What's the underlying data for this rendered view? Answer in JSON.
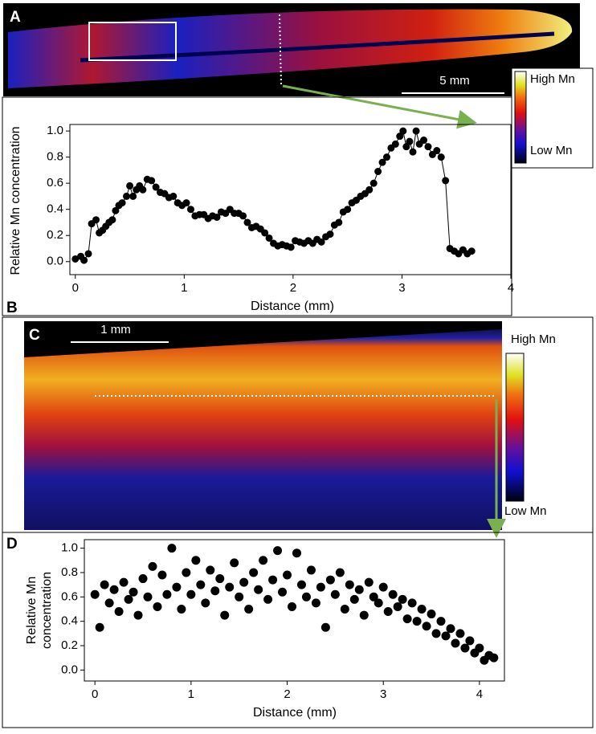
{
  "panels": [
    {
      "label": "A",
      "scale_bar": "5 mm",
      "colorbar": {
        "high": "High Mn",
        "low": "Low Mn"
      }
    },
    {
      "label": "C",
      "scale_bar": "1 mm",
      "colorbar": {
        "high": "High Mn",
        "low": "Low Mn"
      }
    }
  ],
  "chart_data": [
    {
      "type": "line",
      "label": "B",
      "ylabel": "Relative Mn concentration",
      "xlabel": "Distance (mm)",
      "color": "#000000",
      "markers": true,
      "x": [
        0.0,
        0.05,
        0.08,
        0.12,
        0.15,
        0.19,
        0.22,
        0.25,
        0.28,
        0.31,
        0.34,
        0.37,
        0.4,
        0.43,
        0.47,
        0.5,
        0.53,
        0.56,
        0.59,
        0.62,
        0.66,
        0.7,
        0.74,
        0.78,
        0.82,
        0.86,
        0.9,
        0.94,
        0.98,
        1.02,
        1.06,
        1.1,
        1.14,
        1.18,
        1.22,
        1.26,
        1.3,
        1.34,
        1.38,
        1.42,
        1.46,
        1.5,
        1.54,
        1.58,
        1.62,
        1.66,
        1.7,
        1.74,
        1.78,
        1.82,
        1.86,
        1.9,
        1.94,
        1.98,
        2.02,
        2.06,
        2.1,
        2.14,
        2.18,
        2.22,
        2.26,
        2.3,
        2.34,
        2.38,
        2.42,
        2.46,
        2.5,
        2.54,
        2.58,
        2.62,
        2.66,
        2.7,
        2.74,
        2.78,
        2.82,
        2.86,
        2.9,
        2.94,
        2.98,
        3.01,
        3.04,
        3.07,
        3.1,
        3.13,
        3.16,
        3.2,
        3.24,
        3.28,
        3.32,
        3.36,
        3.4,
        3.44,
        3.48,
        3.52,
        3.56,
        3.6,
        3.64
      ],
      "values": [
        0.02,
        0.04,
        0.01,
        0.06,
        0.29,
        0.32,
        0.22,
        0.24,
        0.27,
        0.3,
        0.32,
        0.39,
        0.43,
        0.45,
        0.5,
        0.58,
        0.5,
        0.55,
        0.58,
        0.55,
        0.63,
        0.62,
        0.57,
        0.53,
        0.52,
        0.49,
        0.5,
        0.45,
        0.43,
        0.45,
        0.4,
        0.35,
        0.36,
        0.36,
        0.33,
        0.35,
        0.34,
        0.38,
        0.37,
        0.4,
        0.37,
        0.37,
        0.35,
        0.3,
        0.26,
        0.27,
        0.25,
        0.22,
        0.18,
        0.14,
        0.12,
        0.13,
        0.12,
        0.11,
        0.16,
        0.15,
        0.14,
        0.16,
        0.14,
        0.17,
        0.15,
        0.19,
        0.21,
        0.28,
        0.3,
        0.38,
        0.4,
        0.45,
        0.47,
        0.5,
        0.52,
        0.55,
        0.6,
        0.69,
        0.76,
        0.8,
        0.87,
        0.9,
        0.96,
        1.0,
        0.88,
        0.92,
        0.84,
        1.0,
        0.9,
        0.93,
        0.88,
        0.82,
        0.85,
        0.8,
        0.62,
        0.1,
        0.08,
        0.06,
        0.09,
        0.06,
        0.08
      ],
      "xlim": [
        -0.05,
        4
      ],
      "ylim": [
        -0.1,
        1.05
      ],
      "xticks": [
        0,
        1,
        2,
        3,
        4
      ],
      "yticks": [
        {
          "value": 0,
          "label": "0.0"
        },
        0.2,
        0.4,
        0.6,
        0.8,
        {
          "value": 1,
          "label": "1.0"
        }
      ]
    },
    {
      "type": "scatter",
      "label": "D",
      "ylabel": [
        "Relative Mn",
        "concentration"
      ],
      "xlabel": "Distance (mm)",
      "color": "#000000",
      "x": [
        0.0,
        0.05,
        0.1,
        0.15,
        0.2,
        0.25,
        0.3,
        0.35,
        0.4,
        0.45,
        0.5,
        0.55,
        0.6,
        0.65,
        0.7,
        0.75,
        0.8,
        0.85,
        0.9,
        0.95,
        1.0,
        1.05,
        1.1,
        1.15,
        1.2,
        1.25,
        1.3,
        1.35,
        1.4,
        1.45,
        1.5,
        1.55,
        1.6,
        1.65,
        1.7,
        1.75,
        1.8,
        1.85,
        1.9,
        1.95,
        2.0,
        2.05,
        2.1,
        2.15,
        2.2,
        2.25,
        2.3,
        2.35,
        2.4,
        2.45,
        2.5,
        2.55,
        2.6,
        2.65,
        2.7,
        2.75,
        2.8,
        2.85,
        2.9,
        2.95,
        3.0,
        3.05,
        3.1,
        3.15,
        3.2,
        3.25,
        3.3,
        3.35,
        3.4,
        3.45,
        3.5,
        3.55,
        3.6,
        3.65,
        3.7,
        3.75,
        3.8,
        3.85,
        3.9,
        3.95,
        4.0,
        4.05,
        4.1,
        4.15
      ],
      "values": [
        0.62,
        0.35,
        0.7,
        0.55,
        0.66,
        0.48,
        0.72,
        0.58,
        0.64,
        0.45,
        0.75,
        0.6,
        0.85,
        0.52,
        0.78,
        0.62,
        1.0,
        0.68,
        0.5,
        0.8,
        0.62,
        0.9,
        0.7,
        0.55,
        0.82,
        0.65,
        0.75,
        0.45,
        0.68,
        0.88,
        0.6,
        0.72,
        0.5,
        0.8,
        0.66,
        0.9,
        0.58,
        0.74,
        0.98,
        0.64,
        0.78,
        0.52,
        0.96,
        0.7,
        0.6,
        0.82,
        0.55,
        0.68,
        0.35,
        0.74,
        0.62,
        0.8,
        0.5,
        0.7,
        0.58,
        0.66,
        0.45,
        0.72,
        0.6,
        0.55,
        0.68,
        0.48,
        0.62,
        0.52,
        0.58,
        0.42,
        0.55,
        0.4,
        0.5,
        0.36,
        0.46,
        0.3,
        0.4,
        0.28,
        0.34,
        0.22,
        0.3,
        0.18,
        0.24,
        0.14,
        0.18,
        0.08,
        0.12,
        0.1
      ],
      "xlim": [
        -0.11,
        4.26
      ],
      "ylim": [
        -0.09,
        1.07
      ],
      "xticks": [
        0,
        1,
        2,
        3,
        4
      ],
      "yticks": [
        {
          "value": 0,
          "label": "0.0"
        },
        0.2,
        0.4,
        0.6,
        0.8,
        {
          "value": 1,
          "label": "1.0"
        }
      ]
    }
  ]
}
